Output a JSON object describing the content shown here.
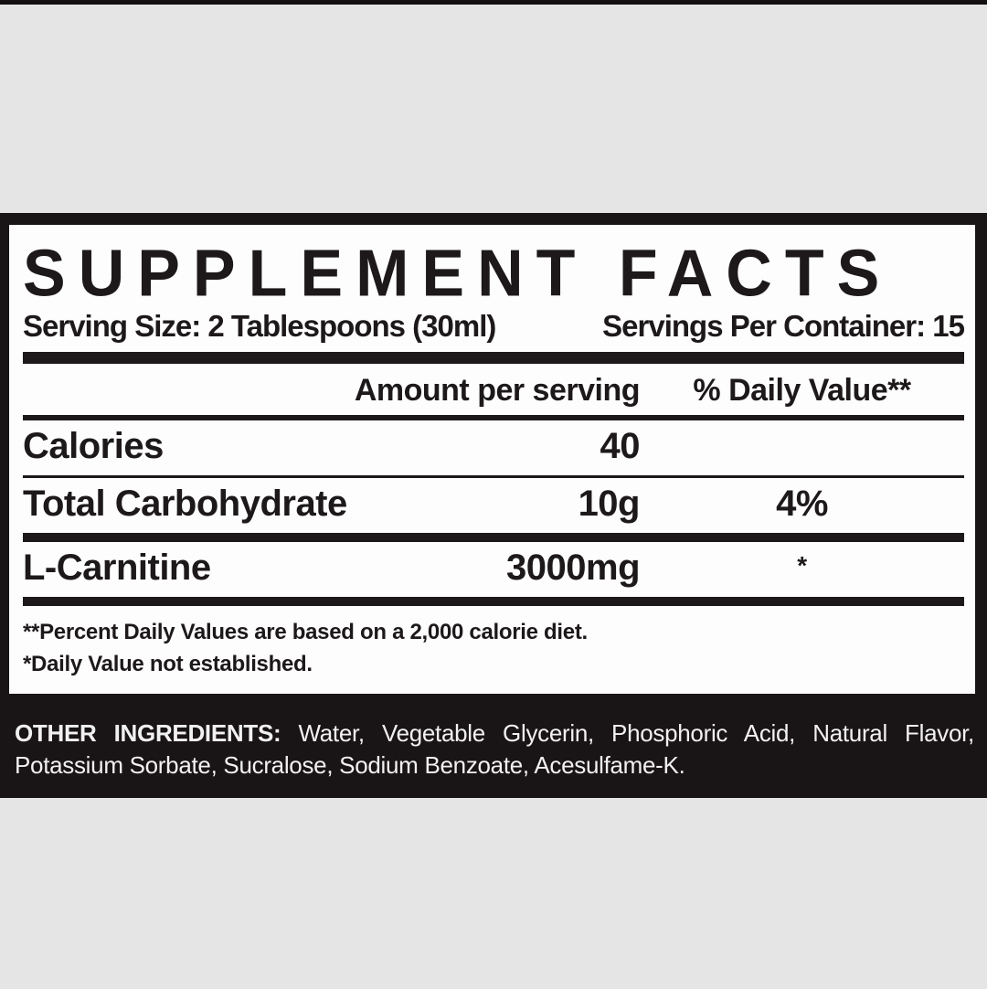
{
  "label": {
    "title": "SUPPLEMENT FACTS",
    "serving_size": "Serving Size: 2 Tablespoons (30ml)",
    "servings_per_container": "Servings Per Container: 15",
    "columns": {
      "amount": "Amount per serving",
      "daily_value": "% Daily Value**"
    },
    "rows": [
      {
        "name": "Calories",
        "amount": "40",
        "dv": ""
      },
      {
        "name": "Total Carbohydrate",
        "amount": "10g",
        "dv": "4%"
      },
      {
        "name": "L-Carnitine",
        "amount": "3000mg",
        "dv": "*"
      }
    ],
    "footnotes": [
      "**Percent Daily Values are based on a 2,000 calorie diet.",
      "*Daily Value not established."
    ],
    "other_ingredients": {
      "label": "OTHER INGREDIENTS:",
      "line1_rest": "Water, Vegetable Glycerin, Phosphoric Acid, Natural Flavor,",
      "line2": "Potassium Sorbate, Sucralose, Sodium Benzoate, Acesulfame-K."
    }
  },
  "colors": {
    "panel_black": "#191415",
    "text_black": "#1d191a",
    "background_gray": "#e6e5e5",
    "box_white": "#fdfdfd",
    "ingredients_text": "#f2f1f1"
  }
}
